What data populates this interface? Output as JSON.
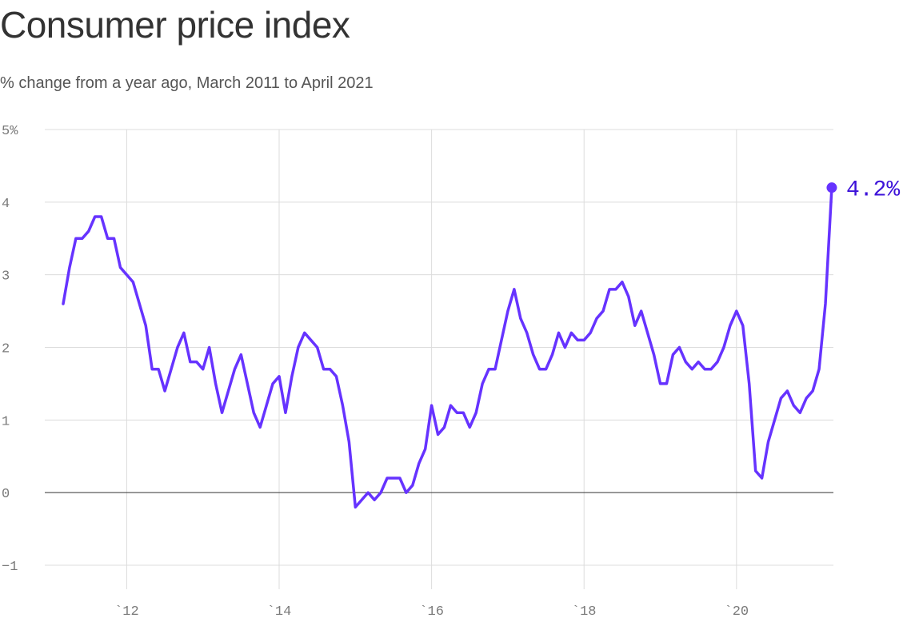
{
  "title": "Consumer price index",
  "subtitle": "% change from a year ago, March 2011 to April 2021",
  "chart_data": {
    "type": "line",
    "y_ticks": [
      "5%",
      "4",
      "3",
      "2",
      "1",
      "0",
      "−1"
    ],
    "y_tick_values": [
      5,
      4,
      3,
      2,
      1,
      0,
      -1
    ],
    "x_ticks": [
      "`12",
      "`14",
      "`16",
      "`18",
      "`20"
    ],
    "x_tick_values": [
      "2012-01",
      "2014-01",
      "2016-01",
      "2018-01",
      "2020-01"
    ],
    "ylim": [
      -1,
      5
    ],
    "grid": true,
    "end_label": "4.2%",
    "colors": {
      "line": "#6633ff",
      "end_label": "#3d12d9",
      "grid": "#dcdcdc",
      "baseline": "#333333"
    },
    "series": [
      {
        "x": [
          "2011-03",
          "2011-04",
          "2011-05",
          "2011-06",
          "2011-07",
          "2011-08",
          "2011-09",
          "2011-10",
          "2011-11",
          "2011-12",
          "2012-01",
          "2012-02",
          "2012-03",
          "2012-04",
          "2012-05",
          "2012-06",
          "2012-07",
          "2012-08",
          "2012-09",
          "2012-10",
          "2012-11",
          "2012-12",
          "2013-01",
          "2013-02",
          "2013-03",
          "2013-04",
          "2013-05",
          "2013-06",
          "2013-07",
          "2013-08",
          "2013-09",
          "2013-10",
          "2013-11",
          "2013-12",
          "2014-01",
          "2014-02",
          "2014-03",
          "2014-04",
          "2014-05",
          "2014-06",
          "2014-07",
          "2014-08",
          "2014-09",
          "2014-10",
          "2014-11",
          "2014-12",
          "2015-01",
          "2015-02",
          "2015-03",
          "2015-04",
          "2015-05",
          "2015-06",
          "2015-07",
          "2015-08",
          "2015-09",
          "2015-10",
          "2015-11",
          "2015-12",
          "2016-01",
          "2016-02",
          "2016-03",
          "2016-04",
          "2016-05",
          "2016-06",
          "2016-07",
          "2016-08",
          "2016-09",
          "2016-10",
          "2016-11",
          "2016-12",
          "2017-01",
          "2017-02",
          "2017-03",
          "2017-04",
          "2017-05",
          "2017-06",
          "2017-07",
          "2017-08",
          "2017-09",
          "2017-10",
          "2017-11",
          "2017-12",
          "2018-01",
          "2018-02",
          "2018-03",
          "2018-04",
          "2018-05",
          "2018-06",
          "2018-07",
          "2018-08",
          "2018-09",
          "2018-10",
          "2018-11",
          "2018-12",
          "2019-01",
          "2019-02",
          "2019-03",
          "2019-04",
          "2019-05",
          "2019-06",
          "2019-07",
          "2019-08",
          "2019-09",
          "2019-10",
          "2019-11",
          "2019-12",
          "2020-01",
          "2020-02",
          "2020-03",
          "2020-04",
          "2020-05",
          "2020-06",
          "2020-07",
          "2020-08",
          "2020-09",
          "2020-10",
          "2020-11",
          "2020-12",
          "2021-01",
          "2021-02",
          "2021-03",
          "2021-04"
        ],
        "values": [
          2.6,
          3.1,
          3.5,
          3.5,
          3.6,
          3.8,
          3.8,
          3.5,
          3.5,
          3.1,
          3.0,
          2.9,
          2.6,
          2.3,
          1.7,
          1.7,
          1.4,
          1.7,
          2.0,
          2.2,
          1.8,
          1.8,
          1.7,
          2.0,
          1.5,
          1.1,
          1.4,
          1.7,
          1.9,
          1.5,
          1.1,
          0.9,
          1.2,
          1.5,
          1.6,
          1.1,
          1.6,
          2.0,
          2.2,
          2.1,
          2.0,
          1.7,
          1.7,
          1.6,
          1.2,
          0.7,
          -0.2,
          -0.1,
          0.0,
          -0.1,
          0.0,
          0.2,
          0.2,
          0.2,
          0.0,
          0.1,
          0.4,
          0.6,
          1.2,
          0.8,
          0.9,
          1.2,
          1.1,
          1.1,
          0.9,
          1.1,
          1.5,
          1.7,
          1.7,
          2.1,
          2.5,
          2.8,
          2.4,
          2.2,
          1.9,
          1.7,
          1.7,
          1.9,
          2.2,
          2.0,
          2.2,
          2.1,
          2.1,
          2.2,
          2.4,
          2.5,
          2.8,
          2.8,
          2.9,
          2.7,
          2.3,
          2.5,
          2.2,
          1.9,
          1.5,
          1.5,
          1.9,
          2.0,
          1.8,
          1.7,
          1.8,
          1.7,
          1.7,
          1.8,
          2.0,
          2.3,
          2.5,
          2.3,
          1.5,
          0.3,
          0.2,
          0.7,
          1.0,
          1.3,
          1.4,
          1.2,
          1.1,
          1.3,
          1.4,
          1.7,
          2.6,
          4.2
        ]
      }
    ]
  }
}
